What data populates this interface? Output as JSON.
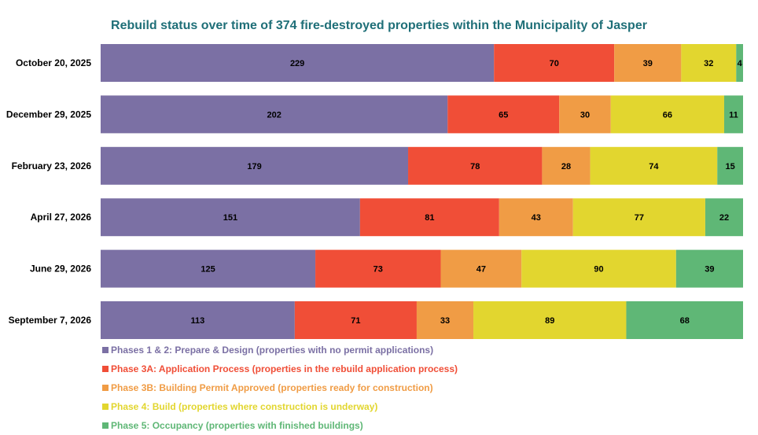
{
  "chart_data": {
    "type": "bar",
    "orientation": "horizontal",
    "stacked": true,
    "title": "Rebuild status over time of 374 fire-destroyed properties within the Municipality of Jasper",
    "categories": [
      "October 20, 2025",
      "December 29, 2025",
      "February 23, 2026",
      "April 27, 2026",
      "June 29, 2026",
      "September 7, 2026"
    ],
    "total": 374,
    "series": [
      {
        "name": "Phases 1 & 2: Prepare & Design (properties with no permit applications)",
        "color": "#7b70a4",
        "values": [
          229,
          202,
          179,
          151,
          125,
          113
        ]
      },
      {
        "name": "Phase 3A: Application Process (properties in the rebuild application process)",
        "color": "#f04e37",
        "values": [
          70,
          65,
          78,
          81,
          73,
          71
        ]
      },
      {
        "name": "Phase 3B: Building Permit Approved (properties ready for construction)",
        "color": "#f09c45",
        "values": [
          39,
          30,
          28,
          43,
          47,
          33
        ]
      },
      {
        "name": "Phase 4: Build (properties where construction is underway)",
        "color": "#e2d62f",
        "values": [
          32,
          66,
          74,
          77,
          90,
          89
        ]
      },
      {
        "name": "Phase 5: Occupancy (properties with finished buildings)",
        "color": "#5fb776",
        "values": [
          4,
          11,
          15,
          22,
          39,
          68
        ]
      }
    ],
    "legend_position": "bottom-left",
    "grid": false
  }
}
